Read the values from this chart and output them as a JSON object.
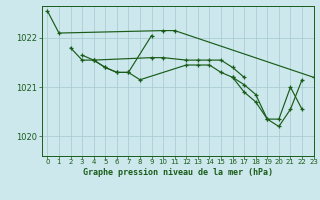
{
  "background_color": "#cce8ec",
  "grid_color": "#aacdd4",
  "line_color": "#1a5c1a",
  "xlim": [
    -0.5,
    23
  ],
  "ylim": [
    1019.6,
    1022.65
  ],
  "yticks": [
    1020,
    1021,
    1022
  ],
  "xticks": [
    0,
    1,
    2,
    3,
    4,
    5,
    6,
    7,
    8,
    9,
    10,
    11,
    12,
    13,
    14,
    15,
    16,
    17,
    18,
    19,
    20,
    21,
    22,
    23
  ],
  "xlabel": "Graphe pression niveau de la mer (hPa)",
  "series": [
    {
      "x": [
        0,
        1,
        10,
        11,
        23
      ],
      "y": [
        1022.55,
        1022.1,
        1022.15,
        1022.15,
        1021.2
      ]
    },
    {
      "x": [
        2,
        3,
        4,
        9,
        10,
        12,
        13,
        14,
        15,
        16,
        17
      ],
      "y": [
        1021.8,
        1021.55,
        1021.55,
        1021.6,
        1021.6,
        1021.55,
        1021.55,
        1021.55,
        1021.55,
        1021.4,
        1021.2
      ]
    },
    {
      "x": [
        3,
        4,
        5,
        6,
        7,
        9
      ],
      "y": [
        1021.65,
        1021.55,
        1021.4,
        1021.3,
        1021.3,
        1022.05
      ]
    },
    {
      "x": [
        4,
        5,
        6,
        7,
        8,
        12,
        13,
        14,
        15,
        16,
        17,
        18,
        19,
        20,
        21,
        22
      ],
      "y": [
        1021.55,
        1021.4,
        1021.3,
        1021.3,
        1021.15,
        1021.45,
        1021.45,
        1021.45,
        1021.3,
        1021.2,
        1021.05,
        1020.85,
        1020.35,
        1020.35,
        1021.0,
        1020.55
      ]
    },
    {
      "x": [
        16,
        17,
        18,
        19,
        20,
        21,
        22
      ],
      "y": [
        1021.2,
        1020.9,
        1020.7,
        1020.35,
        1020.2,
        1020.55,
        1021.15
      ]
    }
  ]
}
